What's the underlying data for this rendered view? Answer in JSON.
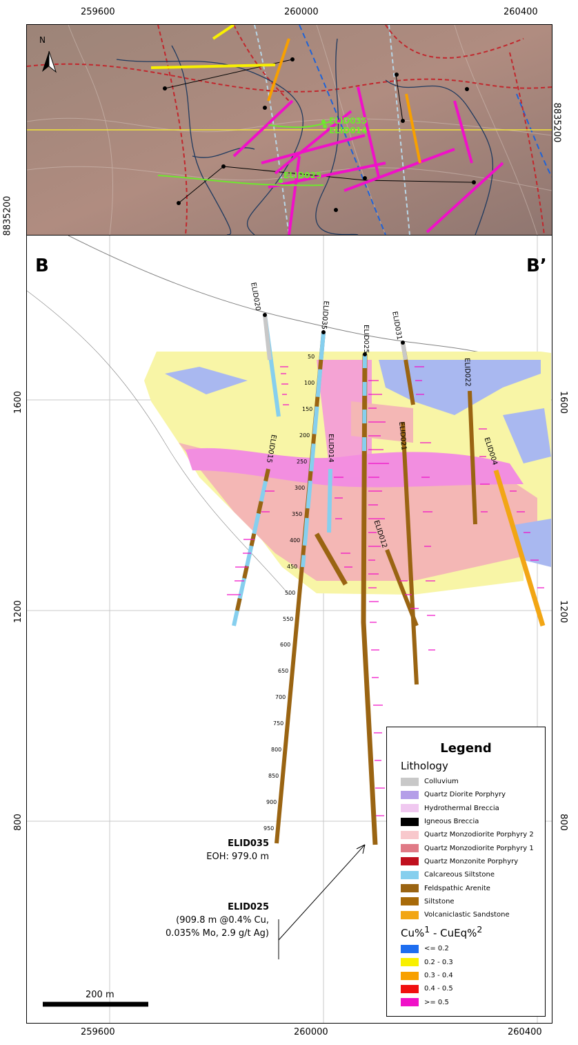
{
  "coords": {
    "x_top": [
      "259600",
      "260000",
      "260400"
    ],
    "x_bottom": [
      "259600",
      "260000",
      "260400"
    ],
    "y_top_right": "8835200",
    "y_top_left": "8835200",
    "y_section_left": [
      "1600",
      "1200",
      "800"
    ],
    "y_section_right": [
      "1600",
      "1200",
      "800"
    ]
  },
  "map": {
    "north_label": "N",
    "hole_labels": [
      "ELID035",
      "ELID014",
      "ELID025"
    ],
    "colors": {
      "terrain": "#a8877a",
      "fault": "#c1272d",
      "trace": "#1f3a5f",
      "highlight": "#6ee82e",
      "section_line": "#f2e43a"
    }
  },
  "section": {
    "start_label": "B",
    "end_label": "B’",
    "holes": [
      "ELID020",
      "ELID035",
      "ELID025",
      "ELID031",
      "ELID022",
      "ELID015",
      "ELID014",
      "ELID021",
      "ELID004",
      "ELID012"
    ],
    "depths": [
      "50",
      "100",
      "150",
      "200",
      "250",
      "300",
      "350",
      "400",
      "450",
      "500",
      "550",
      "600",
      "650",
      "700",
      "750",
      "800",
      "850",
      "900",
      "950"
    ],
    "colors": {
      "lt05": "#f8f5a6",
      "gt05": "#f4b7b5",
      "high": "#f28ee0",
      "low": "#a9b8f0"
    }
  },
  "callouts": {
    "elid035_name": "ELID035",
    "elid035_text": "EOH: 979.0 m",
    "elid025_name": "ELID025",
    "elid025_line1": "(909.8 m @0.4% Cu,",
    "elid025_line2": "0.035% Mo, 2.9 g/t Ag)"
  },
  "scale_bar": "200 m",
  "legend": {
    "title": "Legend",
    "lithology_title": "Lithology",
    "lithology": [
      {
        "label": "Colluvium",
        "color": "#c8c8c8"
      },
      {
        "label": "Quartz Diorite Porphyry",
        "color": "#b49ee8"
      },
      {
        "label": "Hydrothermal Breccia",
        "color": "#f0c8f0"
      },
      {
        "label": "Igneous Breccia",
        "color": "#000000"
      },
      {
        "label": "Quartz Monzodiorite Porphyry 2",
        "color": "#f8c8cc"
      },
      {
        "label": "Quartz Monzodiorite Porphyry 1",
        "color": "#e07a86"
      },
      {
        "label": "Quartz Monzonite Porphyry",
        "color": "#c0101e"
      },
      {
        "label": "Calcareous Siltstone",
        "color": "#86cfee"
      },
      {
        "label": "Feldspathic Arenite",
        "color": "#9a6412"
      },
      {
        "label": "Siltstone",
        "color": "#a86a08"
      },
      {
        "label": "Volcaniclastic Sandstone",
        "color": "#f2a614"
      }
    ],
    "grade_title": "Cu%",
    "grade_sup1": "1",
    "grade_mid": " - CuEq%",
    "grade_sup2": "2",
    "grades": [
      {
        "label": "<= 0.2",
        "color": "#1e6ef0"
      },
      {
        "label": "0.2 - 0.3",
        "color": "#f8f000"
      },
      {
        "label": "0.3 - 0.4",
        "color": "#f8a000"
      },
      {
        "label": "0.4 - 0.5",
        "color": "#f01010"
      },
      {
        "label": ">= 0.5",
        "color": "#f010c8"
      }
    ]
  }
}
